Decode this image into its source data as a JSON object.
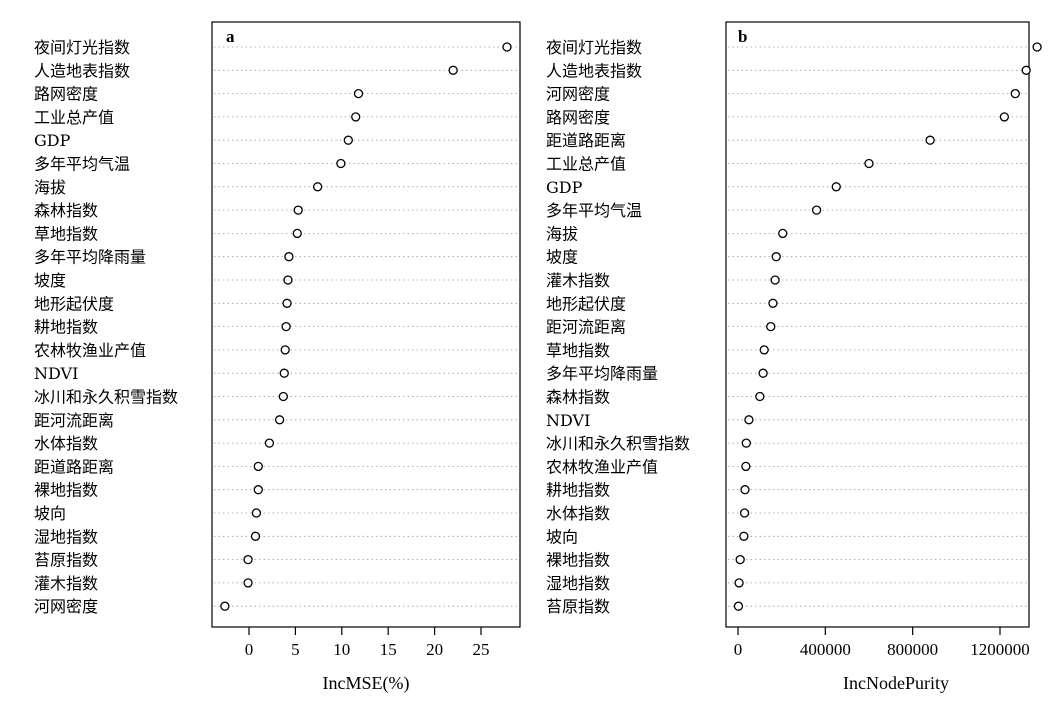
{
  "chart_data": [
    {
      "type": "scatter",
      "panel": "a",
      "xlabel": "IncMSE(%)",
      "ylabel": "",
      "xlim": [
        -3,
        28
      ],
      "xticks": [
        "0",
        "5",
        "10",
        "15",
        "20",
        "25"
      ],
      "xtick_values": [
        0,
        5,
        10,
        15,
        20,
        25
      ],
      "grid": "dotted horizontal guide lines",
      "categories": [
        "夜间灯光指数",
        "人造地表指数",
        "路网密度",
        "工业总产值",
        "GDP",
        "多年平均气温",
        "海拔",
        "森林指数",
        "草地指数",
        "多年平均降雨量",
        "坡度",
        "地形起伏度",
        "耕地指数",
        "农林牧渔业产值",
        "NDVI",
        "冰川和永久积雪指数",
        "距河流距离",
        "水体指数",
        "距道路距离",
        "裸地指数",
        "坡向",
        "湿地指数",
        "苔原指数",
        "灌木指数",
        "河网密度"
      ],
      "values": [
        27.8,
        22.0,
        11.8,
        11.5,
        10.7,
        9.9,
        7.4,
        5.3,
        5.2,
        4.3,
        4.2,
        4.1,
        4.0,
        3.9,
        3.8,
        3.7,
        3.3,
        2.2,
        1.0,
        1.0,
        0.8,
        0.7,
        -0.1,
        -0.1,
        -2.6
      ]
    },
    {
      "type": "scatter",
      "panel": "b",
      "xlabel": "IncNodePurity",
      "ylabel": "",
      "xlim": [
        -40000,
        1400000
      ],
      "xticks": [
        "0",
        "400000",
        "800000",
        "1200000"
      ],
      "xtick_values": [
        0,
        400000,
        800000,
        1200000
      ],
      "grid": "dotted horizontal guide lines",
      "categories": [
        "夜间灯光指数",
        "人造地表指数",
        "河网密度",
        "路网密度",
        "距道路距离",
        "工业总产值",
        "GDP",
        "多年平均气温",
        "海拔",
        "坡度",
        "灌木指数",
        "地形起伏度",
        "距河流距离",
        "草地指数",
        "多年平均降雨量",
        "森林指数",
        "NDVI",
        "冰川和永久积雪指数",
        "农林牧渔业产值",
        "耕地指数",
        "水体指数",
        "坡向",
        "裸地指数",
        "湿地指数",
        "苔原指数"
      ],
      "values": [
        1370000,
        1320000,
        1270000,
        1220000,
        880000,
        600000,
        450000,
        360000,
        205000,
        175000,
        170000,
        160000,
        150000,
        120000,
        115000,
        100000,
        50000,
        38000,
        36000,
        32000,
        30000,
        27000,
        10000,
        5000,
        2000
      ]
    }
  ]
}
